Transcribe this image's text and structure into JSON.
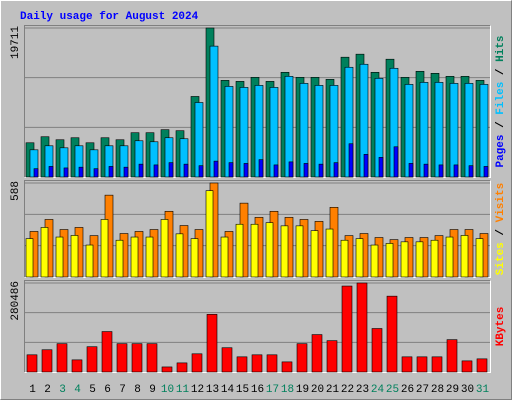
{
  "chart_data": [
    {
      "type": "bar",
      "title": "Daily usage for August 2024",
      "ylim": [
        0,
        19711
      ],
      "yticks": [
        19711
      ],
      "series": [
        {
          "name": "Hits",
          "color": "#00805c",
          "values": [
            4528,
            5327,
            4928,
            5194,
            4528,
            5194,
            4928,
            5860,
            5860,
            6260,
            6126,
            10654,
            19711,
            12785,
            12652,
            13185,
            12652,
            13851,
            13185,
            13185,
            12918,
            15848,
            16248,
            13851,
            15582,
            13185,
            13984,
            13718,
            13318,
            13318,
            12785
          ]
        },
        {
          "name": "Files",
          "color": "#00c0ff",
          "values": [
            3596,
            4129,
            3862,
            4129,
            3596,
            4129,
            4129,
            4794,
            4661,
            5194,
            5061,
            9855,
            17313,
            11986,
            11853,
            12119,
            11853,
            13318,
            12385,
            12119,
            12119,
            14517,
            14916,
            13052,
            14383,
            12252,
            12519,
            12519,
            12385,
            12385,
            12252
          ]
        },
        {
          "name": "Pages",
          "color": "#0000ff",
          "values": [
            1100,
            1400,
            1200,
            1300,
            1100,
            1400,
            1300,
            1700,
            1600,
            1900,
            1700,
            1500,
            2100,
            1900,
            1800,
            2300,
            1600,
            2000,
            1800,
            1700,
            1900,
            4400,
            3000,
            2600,
            4000,
            1800,
            1700,
            1600,
            1600,
            1500,
            1400
          ]
        }
      ]
    },
    {
      "type": "bar",
      "ylim": [
        0,
        588
      ],
      "yticks": [
        588
      ],
      "series": [
        {
          "name": "Visits",
          "color": "#ff8000",
          "values": [
            285,
            360,
            297,
            310,
            259,
            512,
            272,
            285,
            297,
            411,
            322,
            297,
            588,
            285,
            462,
            373,
            411,
            373,
            360,
            348,
            436,
            259,
            272,
            247,
            234,
            247,
            247,
            259,
            297,
            297,
            272
          ]
        },
        {
          "name": "Sites",
          "color": "#ffff00",
          "values": [
            240,
            310,
            250,
            260,
            200,
            360,
            230,
            250,
            250,
            360,
            270,
            240,
            540,
            250,
            330,
            330,
            340,
            320,
            320,
            290,
            300,
            230,
            240,
            200,
            210,
            220,
            220,
            230,
            250,
            260,
            240
          ]
        }
      ]
    },
    {
      "type": "bar",
      "ylim": [
        0,
        280486
      ],
      "yticks": [
        280486
      ],
      "categories": [
        "1",
        "2",
        "3",
        "4",
        "5",
        "6",
        "7",
        "8",
        "9",
        "10",
        "11",
        "12",
        "13",
        "14",
        "15",
        "16",
        "17",
        "18",
        "19",
        "20",
        "21",
        "22",
        "23",
        "24",
        "25",
        "26",
        "27",
        "28",
        "29",
        "30",
        "31"
      ],
      "label_colors": [
        "#000000",
        "#000000",
        "#00805c",
        "#00805c",
        "#000000",
        "#000000",
        "#000000",
        "#000000",
        "#000000",
        "#00805c",
        "#00805c",
        "#000000",
        "#000000",
        "#000000",
        "#000000",
        "#000000",
        "#00805c",
        "#00805c",
        "#000000",
        "#000000",
        "#000000",
        "#000000",
        "#000000",
        "#00805c",
        "#00805c",
        "#000000",
        "#000000",
        "#000000",
        "#000000",
        "#000000",
        "#00805c"
      ],
      "series": [
        {
          "name": "KBytes",
          "color": "#ff0000",
          "values": [
            54180,
            70118,
            89240,
            38244,
            79675,
            127480,
            89240,
            89240,
            89240,
            15935,
            28683,
            57366,
            181659,
            76488,
            47805,
            54179,
            54179,
            31870,
            89236,
            117919,
            98797,
            270895,
            280486,
            137041,
            239025,
            47805,
            47805,
            47805,
            101984,
            35057,
            41431
          ]
        }
      ]
    }
  ]
}
